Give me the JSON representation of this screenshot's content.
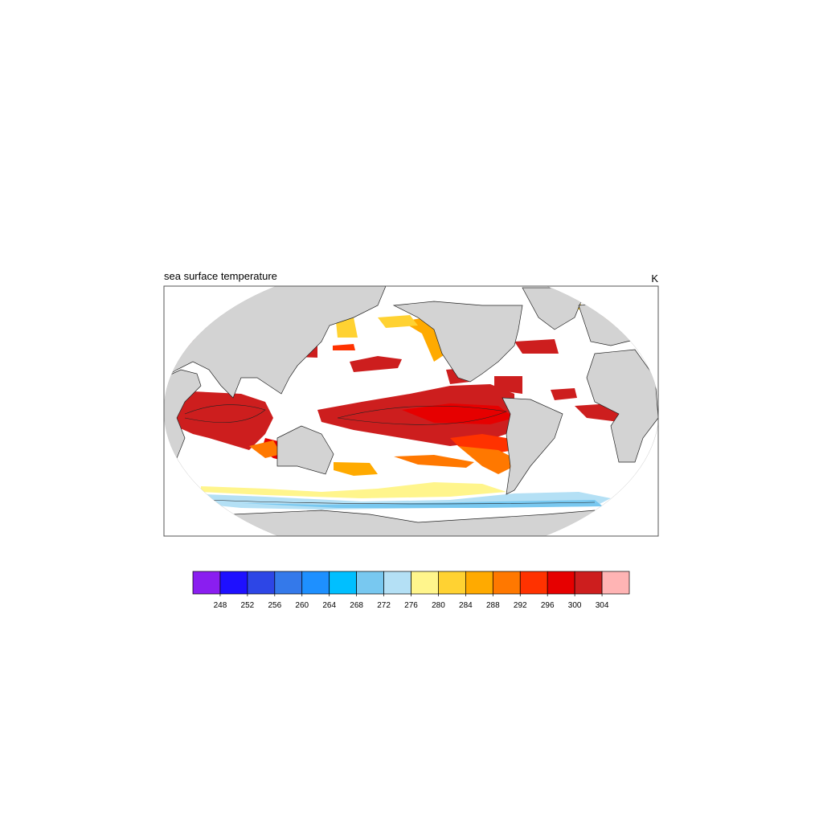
{
  "title": "sea surface temperature",
  "units": "K",
  "colorbar": {
    "levels": [
      248,
      252,
      256,
      260,
      264,
      268,
      272,
      276,
      280,
      284,
      288,
      292,
      296,
      300,
      304
    ],
    "colors": [
      "#8a1ef0",
      "#1e10ff",
      "#2d46e6",
      "#3479ea",
      "#1e90ff",
      "#00bfff",
      "#78c8f0",
      "#b4e0f5",
      "#fff58c",
      "#ffd232",
      "#ffaa00",
      "#ff7800",
      "#ff3200",
      "#e60000",
      "#cd1e1e",
      "#ffb4b4"
    ]
  }
}
